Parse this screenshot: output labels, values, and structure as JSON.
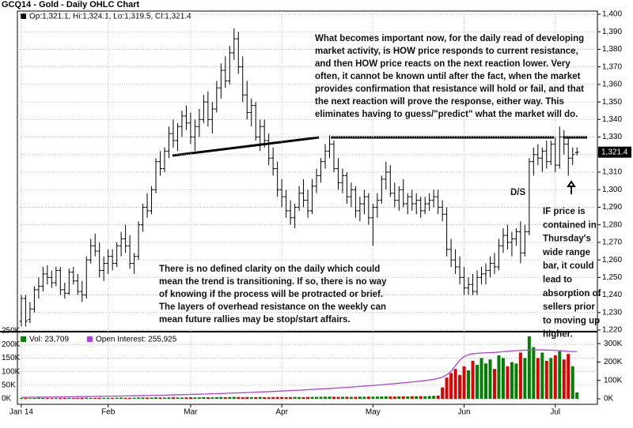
{
  "chart_data": {
    "type": "ohlc",
    "title": "GCQ14 - Gold - Daily OHLC Chart",
    "ohlc_label": "Op:1,321.1, Hi:1,324.1, Lo:1,319.5, Cl:1,321.4",
    "last_label": "1,321.4",
    "bar_color": "#000000",
    "grid": true,
    "xlim": [
      -0.9,
      132.7
    ],
    "xticks": [
      {
        "value": 0,
        "label": "Jan 14"
      },
      {
        "value": 20,
        "label": "Feb"
      },
      {
        "value": 39,
        "label": "Mar"
      },
      {
        "value": 60,
        "label": "Apr"
      },
      {
        "value": 81,
        "label": "May"
      },
      {
        "value": 102,
        "label": "Jun"
      },
      {
        "value": 123,
        "label": "Jul"
      }
    ],
    "ylim": [
      1219.1,
      1401.8
    ],
    "yticks": [
      {
        "value": 1220,
        "label": "1,220"
      },
      {
        "value": 1230,
        "label": "1,230"
      },
      {
        "value": 1240,
        "label": "1,240"
      },
      {
        "value": 1250,
        "label": "1,250"
      },
      {
        "value": 1260,
        "label": "1,260"
      },
      {
        "value": 1270,
        "label": "1,270"
      },
      {
        "value": 1280,
        "label": "1,280"
      },
      {
        "value": 1290,
        "label": "1,290"
      },
      {
        "value": 1300,
        "label": "1,300"
      },
      {
        "value": 1310,
        "label": "1,310"
      },
      {
        "value": 1320,
        "label": "1,320"
      },
      {
        "value": 1330,
        "label": "1,330"
      },
      {
        "value": 1340,
        "label": "1,340"
      },
      {
        "value": 1350,
        "label": "1,350"
      },
      {
        "value": 1360,
        "label": "1,360"
      },
      {
        "value": 1370,
        "label": "1,370"
      },
      {
        "value": 1380,
        "label": "1,380"
      },
      {
        "value": 1390,
        "label": "1,390"
      },
      {
        "value": 1400,
        "label": "1,400"
      }
    ],
    "bars": [
      [
        1225,
        1240,
        1222,
        1238
      ],
      [
        1238,
        1240,
        1222,
        1225
      ],
      [
        1226,
        1236,
        1224,
        1232
      ],
      [
        1232,
        1245,
        1230,
        1243
      ],
      [
        1243,
        1250,
        1238,
        1245
      ],
      [
        1245,
        1256,
        1242,
        1252
      ],
      [
        1252,
        1257,
        1246,
        1250
      ],
      [
        1250,
        1254,
        1244,
        1247
      ],
      [
        1247,
        1256,
        1245,
        1254
      ],
      [
        1254,
        1256,
        1240,
        1243
      ],
      [
        1243,
        1247,
        1238,
        1241
      ],
      [
        1241,
        1255,
        1240,
        1253
      ],
      [
        1253,
        1256,
        1246,
        1248
      ],
      [
        1248,
        1252,
        1240,
        1242
      ],
      [
        1242,
        1248,
        1236,
        1240
      ],
      [
        1240,
        1262,
        1238,
        1260
      ],
      [
        1260,
        1272,
        1258,
        1268
      ],
      [
        1268,
        1275,
        1262,
        1265
      ],
      [
        1265,
        1270,
        1250,
        1254
      ],
      [
        1254,
        1262,
        1248,
        1258
      ],
      [
        1258,
        1266,
        1252,
        1262
      ],
      [
        1262,
        1266,
        1254,
        1258
      ],
      [
        1258,
        1270,
        1256,
        1268
      ],
      [
        1268,
        1276,
        1262,
        1272
      ],
      [
        1272,
        1280,
        1264,
        1268
      ],
      [
        1268,
        1274,
        1255,
        1258
      ],
      [
        1258,
        1264,
        1252,
        1262
      ],
      [
        1262,
        1282,
        1260,
        1280
      ],
      [
        1280,
        1292,
        1276,
        1290
      ],
      [
        1290,
        1298,
        1284,
        1288
      ],
      [
        1288,
        1302,
        1286,
        1300
      ],
      [
        1300,
        1318,
        1298,
        1316
      ],
      [
        1316,
        1322,
        1308,
        1312
      ],
      [
        1312,
        1324,
        1310,
        1322
      ],
      [
        1322,
        1336,
        1318,
        1332
      ],
      [
        1332,
        1340,
        1324,
        1328
      ],
      [
        1328,
        1338,
        1322,
        1336
      ],
      [
        1336,
        1345,
        1330,
        1342
      ],
      [
        1342,
        1348,
        1334,
        1338
      ],
      [
        1338,
        1344,
        1326,
        1330
      ],
      [
        1330,
        1340,
        1322,
        1336
      ],
      [
        1336,
        1346,
        1330,
        1340
      ],
      [
        1340,
        1354,
        1338,
        1350
      ],
      [
        1350,
        1356,
        1336,
        1340
      ],
      [
        1340,
        1350,
        1332,
        1346
      ],
      [
        1346,
        1362,
        1344,
        1358
      ],
      [
        1358,
        1372,
        1352,
        1368
      ],
      [
        1368,
        1376,
        1358,
        1362
      ],
      [
        1362,
        1382,
        1360,
        1378
      ],
      [
        1378,
        1392,
        1374,
        1386
      ],
      [
        1386,
        1390,
        1366,
        1370
      ],
      [
        1370,
        1376,
        1350,
        1354
      ],
      [
        1354,
        1362,
        1340,
        1344
      ],
      [
        1344,
        1352,
        1336,
        1348
      ],
      [
        1348,
        1350,
        1328,
        1330
      ],
      [
        1330,
        1340,
        1322,
        1336
      ],
      [
        1336,
        1340,
        1324,
        1328
      ],
      [
        1328,
        1332,
        1314,
        1318
      ],
      [
        1318,
        1324,
        1308,
        1312
      ],
      [
        1312,
        1316,
        1296,
        1300
      ],
      [
        1300,
        1306,
        1290,
        1296
      ],
      [
        1296,
        1300,
        1284,
        1288
      ],
      [
        1288,
        1294,
        1280,
        1284
      ],
      [
        1284,
        1292,
        1278,
        1290
      ],
      [
        1290,
        1302,
        1288,
        1298
      ],
      [
        1298,
        1306,
        1290,
        1294
      ],
      [
        1294,
        1300,
        1284,
        1288
      ],
      [
        1288,
        1306,
        1286,
        1302
      ],
      [
        1302,
        1312,
        1298,
        1308
      ],
      [
        1308,
        1318,
        1304,
        1316
      ],
      [
        1316,
        1326,
        1312,
        1322
      ],
      [
        1322,
        1331,
        1318,
        1326
      ],
      [
        1326,
        1328,
        1310,
        1312
      ],
      [
        1312,
        1318,
        1300,
        1304
      ],
      [
        1304,
        1312,
        1298,
        1308
      ],
      [
        1308,
        1310,
        1292,
        1296
      ],
      [
        1296,
        1304,
        1290,
        1300
      ],
      [
        1300,
        1302,
        1284,
        1288
      ],
      [
        1288,
        1296,
        1282,
        1292
      ],
      [
        1292,
        1300,
        1286,
        1296
      ],
      [
        1296,
        1298,
        1280,
        1284
      ],
      [
        1284,
        1292,
        1268,
        1290
      ],
      [
        1290,
        1298,
        1284,
        1294
      ],
      [
        1294,
        1308,
        1292,
        1306
      ],
      [
        1306,
        1316,
        1300,
        1310
      ],
      [
        1310,
        1314,
        1296,
        1298
      ],
      [
        1298,
        1304,
        1290,
        1294
      ],
      [
        1294,
        1302,
        1288,
        1300
      ],
      [
        1300,
        1306,
        1290,
        1292
      ],
      [
        1292,
        1298,
        1286,
        1296
      ],
      [
        1296,
        1300,
        1288,
        1292
      ],
      [
        1292,
        1298,
        1286,
        1294
      ],
      [
        1294,
        1296,
        1284,
        1288
      ],
      [
        1288,
        1296,
        1286,
        1292
      ],
      [
        1292,
        1298,
        1288,
        1294
      ],
      [
        1294,
        1300,
        1290,
        1296
      ],
      [
        1296,
        1300,
        1286,
        1290
      ],
      [
        1290,
        1294,
        1282,
        1286
      ],
      [
        1286,
        1290,
        1262,
        1266
      ],
      [
        1266,
        1272,
        1256,
        1260
      ],
      [
        1260,
        1266,
        1252,
        1256
      ],
      [
        1256,
        1262,
        1246,
        1250
      ],
      [
        1250,
        1256,
        1240,
        1244
      ],
      [
        1244,
        1250,
        1240,
        1246
      ],
      [
        1246,
        1252,
        1240,
        1242
      ],
      [
        1242,
        1254,
        1240,
        1250
      ],
      [
        1250,
        1256,
        1246,
        1252
      ],
      [
        1252,
        1258,
        1246,
        1254
      ],
      [
        1254,
        1262,
        1250,
        1258
      ],
      [
        1258,
        1264,
        1252,
        1256
      ],
      [
        1256,
        1272,
        1254,
        1268
      ],
      [
        1268,
        1278,
        1264,
        1274
      ],
      [
        1274,
        1280,
        1266,
        1270
      ],
      [
        1270,
        1276,
        1262,
        1272
      ],
      [
        1272,
        1278,
        1268,
        1276
      ],
      [
        1276,
        1282,
        1258,
        1264
      ],
      [
        1264,
        1280,
        1262,
        1276
      ],
      [
        1276,
        1318,
        1274,
        1316
      ],
      [
        1316,
        1324,
        1308,
        1320
      ],
      [
        1320,
        1326,
        1314,
        1318
      ],
      [
        1318,
        1324,
        1310,
        1322
      ],
      [
        1322,
        1328,
        1312,
        1316
      ],
      [
        1316,
        1328,
        1314,
        1326
      ],
      [
        1326,
        1330,
        1310,
        1314
      ],
      [
        1314,
        1336,
        1312,
        1330
      ],
      [
        1330,
        1334,
        1320,
        1326
      ],
      [
        1326,
        1330,
        1308,
        1318
      ],
      [
        1318,
        1324,
        1314,
        1320
      ],
      [
        1321.1,
        1324.1,
        1319.5,
        1321.4
      ]
    ],
    "volume_label": "Vol: 23,709",
    "up_color": "#008000",
    "down_color": "#e00000",
    "volume_ylim": [
      -20000,
      247000
    ],
    "volume_yticks": [
      {
        "value": 0,
        "label": "0K"
      },
      {
        "value": 50000,
        "label": "50K"
      },
      {
        "value": 100000,
        "label": "100K"
      },
      {
        "value": 150000,
        "label": "150K"
      },
      {
        "value": 200000,
        "label": "200K"
      },
      {
        "value": 250000,
        "label": "250K"
      }
    ],
    "volume": [
      3000,
      3500,
      2800,
      3200,
      4000,
      3600,
      3100,
      2900,
      3300,
      3800,
      3400,
      3900,
      3000,
      3600,
      4200,
      4500,
      3800,
      3500,
      4100,
      3700,
      4000,
      3600,
      4300,
      4800,
      4100,
      3900,
      4400,
      5000,
      5200,
      4700,
      4900,
      5600,
      5100,
      4800,
      5300,
      5900,
      5200,
      5000,
      5500,
      6000,
      5400,
      5700,
      6200,
      5800,
      5500,
      6300,
      6800,
      6100,
      6600,
      7200,
      6900,
      6400,
      6700,
      6100,
      6500,
      6900,
      6300,
      6000,
      6600,
      7000,
      6800,
      6200,
      6500,
      7100,
      6700,
      6300,
      6900,
      7300,
      7000,
      7600,
      7900,
      8200,
      7500,
      7100,
      7400,
      7800,
      7200,
      7600,
      8000,
      7700,
      8300,
      8000,
      8500,
      8800,
      9200,
      8700,
      8400,
      9000,
      9300,
      8900,
      9500,
      9800,
      10200,
      9700,
      10500,
      11000,
      12000,
      42000,
      78000,
      95000,
      110000,
      88000,
      120000,
      105000,
      140000,
      125000,
      150000,
      130000,
      145000,
      110000,
      160000,
      150000,
      120000,
      135000,
      130000,
      170000,
      150000,
      230000,
      190000,
      150000,
      170000,
      140000,
      150000,
      160000,
      175000,
      145000,
      165000,
      120000,
      23709
    ],
    "oi_label": "Open Interest: 255,925",
    "oi_color": "#b040e0",
    "y2lim": [
      -30000,
      365000
    ],
    "y2ticks": [
      {
        "value": 0,
        "label": "0K"
      },
      {
        "value": 100000,
        "label": "100K"
      },
      {
        "value": 200000,
        "label": "200K"
      },
      {
        "value": 300000,
        "label": "300K"
      }
    ],
    "open_interest": [
      8000,
      8200,
      8500,
      8700,
      9000,
      9200,
      9500,
      9800,
      10000,
      10300,
      10600,
      10900,
      11200,
      11500,
      11800,
      12100,
      12400,
      12800,
      13100,
      13500,
      13900,
      14300,
      14700,
      15100,
      15500,
      16000,
      16400,
      16900,
      17400,
      17900,
      18400,
      18900,
      19500,
      20000,
      20600,
      21200,
      21800,
      22400,
      23000,
      23700,
      24400,
      25100,
      25800,
      26500,
      27300,
      28000,
      28800,
      29600,
      30500,
      31300,
      32200,
      33100,
      34000,
      35000,
      35900,
      36900,
      37900,
      39000,
      40000,
      41100,
      42200,
      43300,
      44500,
      45700,
      46900,
      48100,
      49400,
      50700,
      52000,
      53400,
      54800,
      56200,
      57700,
      59200,
      60700,
      62300,
      63900,
      65500,
      67200,
      69000,
      70800,
      72600,
      74500,
      76400,
      78400,
      80400,
      82500,
      84600,
      86800,
      89100,
      91400,
      93800,
      96300,
      99000,
      102000,
      106000,
      111000,
      118000,
      130000,
      150000,
      180000,
      210000,
      230000,
      240000,
      245000,
      247000,
      249000,
      250000,
      251000,
      252000,
      254000,
      256000,
      258000,
      260000,
      262000,
      263000,
      264000,
      265000,
      265000,
      266000,
      266000,
      265000,
      264000,
      263000,
      262000,
      260000,
      258000,
      257000,
      255925
    ],
    "annotations": {
      "commentary": [
        "What becomes important now, for the daily read of developing",
        "market activity, is HOW price responds to current resistance,",
        "and then HOW price reacts on the next reaction lower.  Very",
        "often, it cannot be known until after the fact, when the market",
        "provides confirmation that resistance will hold or fail, and that",
        "the next reaction will prove the response, either way.  This",
        "eliminates having to guess/\"predict\" what the market will do."
      ],
      "clarity": [
        "There is no defined clarity on the daily which could",
        "mean the trend is transitioning.  If so, there is no way",
        "of knowing if the process will be protracted or brief.",
        "The layers of overhead resistance on the weekly can",
        "mean future rallies may be stop/start affairs."
      ],
      "if_price": [
        "IF price is",
        "contained in",
        "Thursday's",
        "wide range",
        "bar, it could",
        "lead to",
        "absorption of",
        "sellers prior",
        "to moving up",
        "higher."
      ],
      "ds": "D/S"
    }
  }
}
